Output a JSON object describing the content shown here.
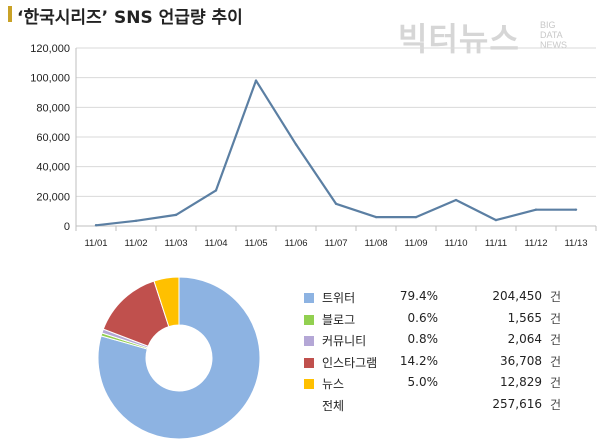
{
  "header": {
    "title": "‘한국시리즈’ SNS 언급량 추이",
    "accent_color": "#c9a227"
  },
  "watermark": {
    "brand": "빅터뉴스",
    "lines": [
      "BIG",
      "DATA",
      "NEWS"
    ]
  },
  "chart_data": [
    {
      "type": "line",
      "categories": [
        "11/01",
        "11/02",
        "11/03",
        "11/04",
        "11/05",
        "11/06",
        "11/07",
        "11/08",
        "11/09",
        "11/10",
        "11/11",
        "11/12",
        "11/13"
      ],
      "values": [
        500,
        3500,
        7500,
        24000,
        98000,
        55000,
        15000,
        6000,
        6000,
        17500,
        4000,
        11000,
        11000
      ],
      "ylim": [
        0,
        120000
      ],
      "yticks": [
        "0",
        "20,000",
        "40,000",
        "60,000",
        "80,000",
        "100,000",
        "120,000"
      ],
      "grid": true,
      "line_color": "#5b7fa3"
    },
    {
      "type": "pie",
      "style": "donut",
      "legend_position": "right",
      "slices": [
        {
          "name": "트위터",
          "pct": "79.4%",
          "count": "204,450",
          "unit": "건",
          "value": 79.4,
          "color": "#8db3e2"
        },
        {
          "name": "블로그",
          "pct": "0.6%",
          "count": "1,565",
          "unit": "건",
          "value": 0.6,
          "color": "#92d050"
        },
        {
          "name": "커뮤니티",
          "pct": "0.8%",
          "count": "2,064",
          "unit": "건",
          "value": 0.8,
          "color": "#b4a7d6"
        },
        {
          "name": "인스타그램",
          "pct": "14.2%",
          "count": "36,708",
          "unit": "건",
          "value": 14.2,
          "color": "#c0504d"
        },
        {
          "name": "뉴스",
          "pct": "5.0%",
          "count": "12,829",
          "unit": "건",
          "value": 5.0,
          "color": "#ffc000"
        }
      ],
      "total": {
        "name": "전체",
        "count": "257,616",
        "unit": "건"
      }
    }
  ]
}
